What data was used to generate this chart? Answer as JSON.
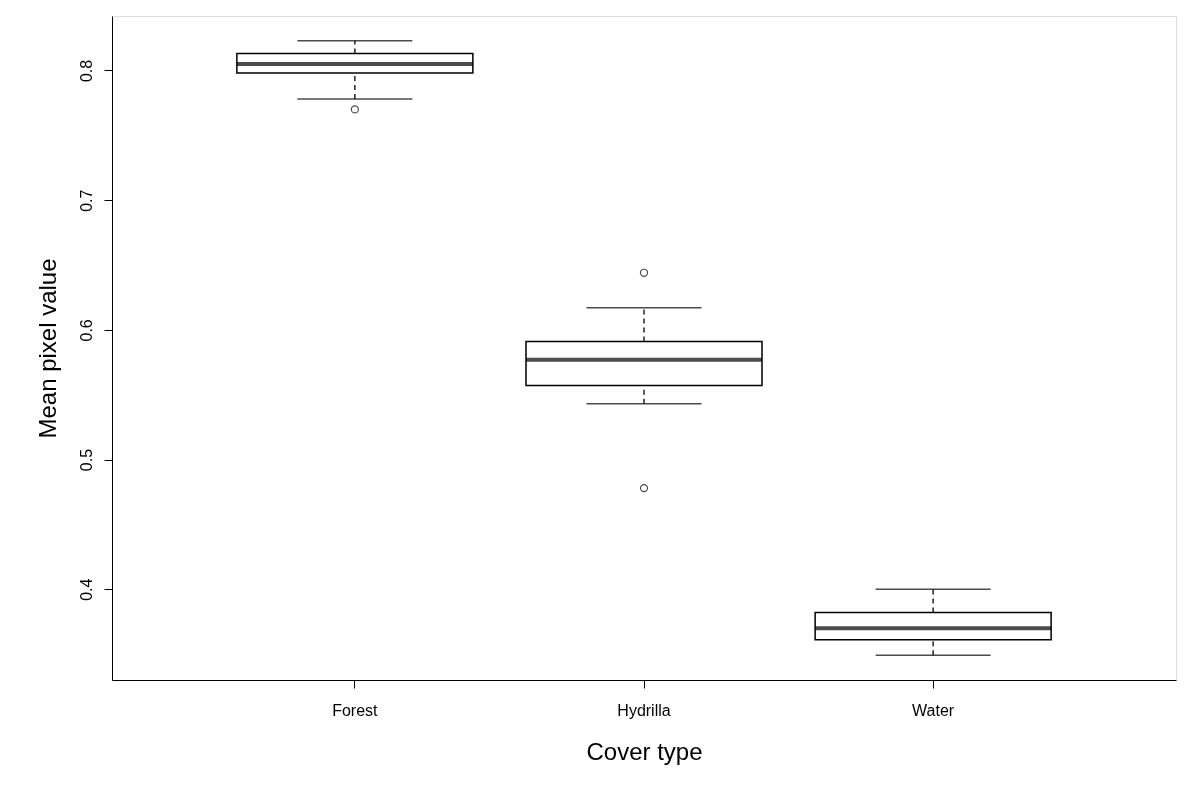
{
  "chart_data": {
    "type": "box",
    "xlabel": "Cover type",
    "ylabel": "Mean pixel value",
    "categories": [
      "Forest",
      "Hydrilla",
      "Water"
    ],
    "boxes": [
      {
        "low": 0.778,
        "q1": 0.798,
        "median": 0.805,
        "q3": 0.813,
        "high": 0.823,
        "outliers": [
          0.77
        ]
      },
      {
        "low": 0.543,
        "q1": 0.557,
        "median": 0.577,
        "q3": 0.591,
        "high": 0.617,
        "outliers": [
          0.644,
          0.478
        ]
      },
      {
        "low": 0.349,
        "q1": 0.361,
        "median": 0.37,
        "q3": 0.382,
        "high": 0.4
      }
    ],
    "ylim": [
      0.33,
      0.842
    ],
    "yticks": [
      0.4,
      0.5,
      0.6,
      0.7,
      0.8
    ]
  }
}
